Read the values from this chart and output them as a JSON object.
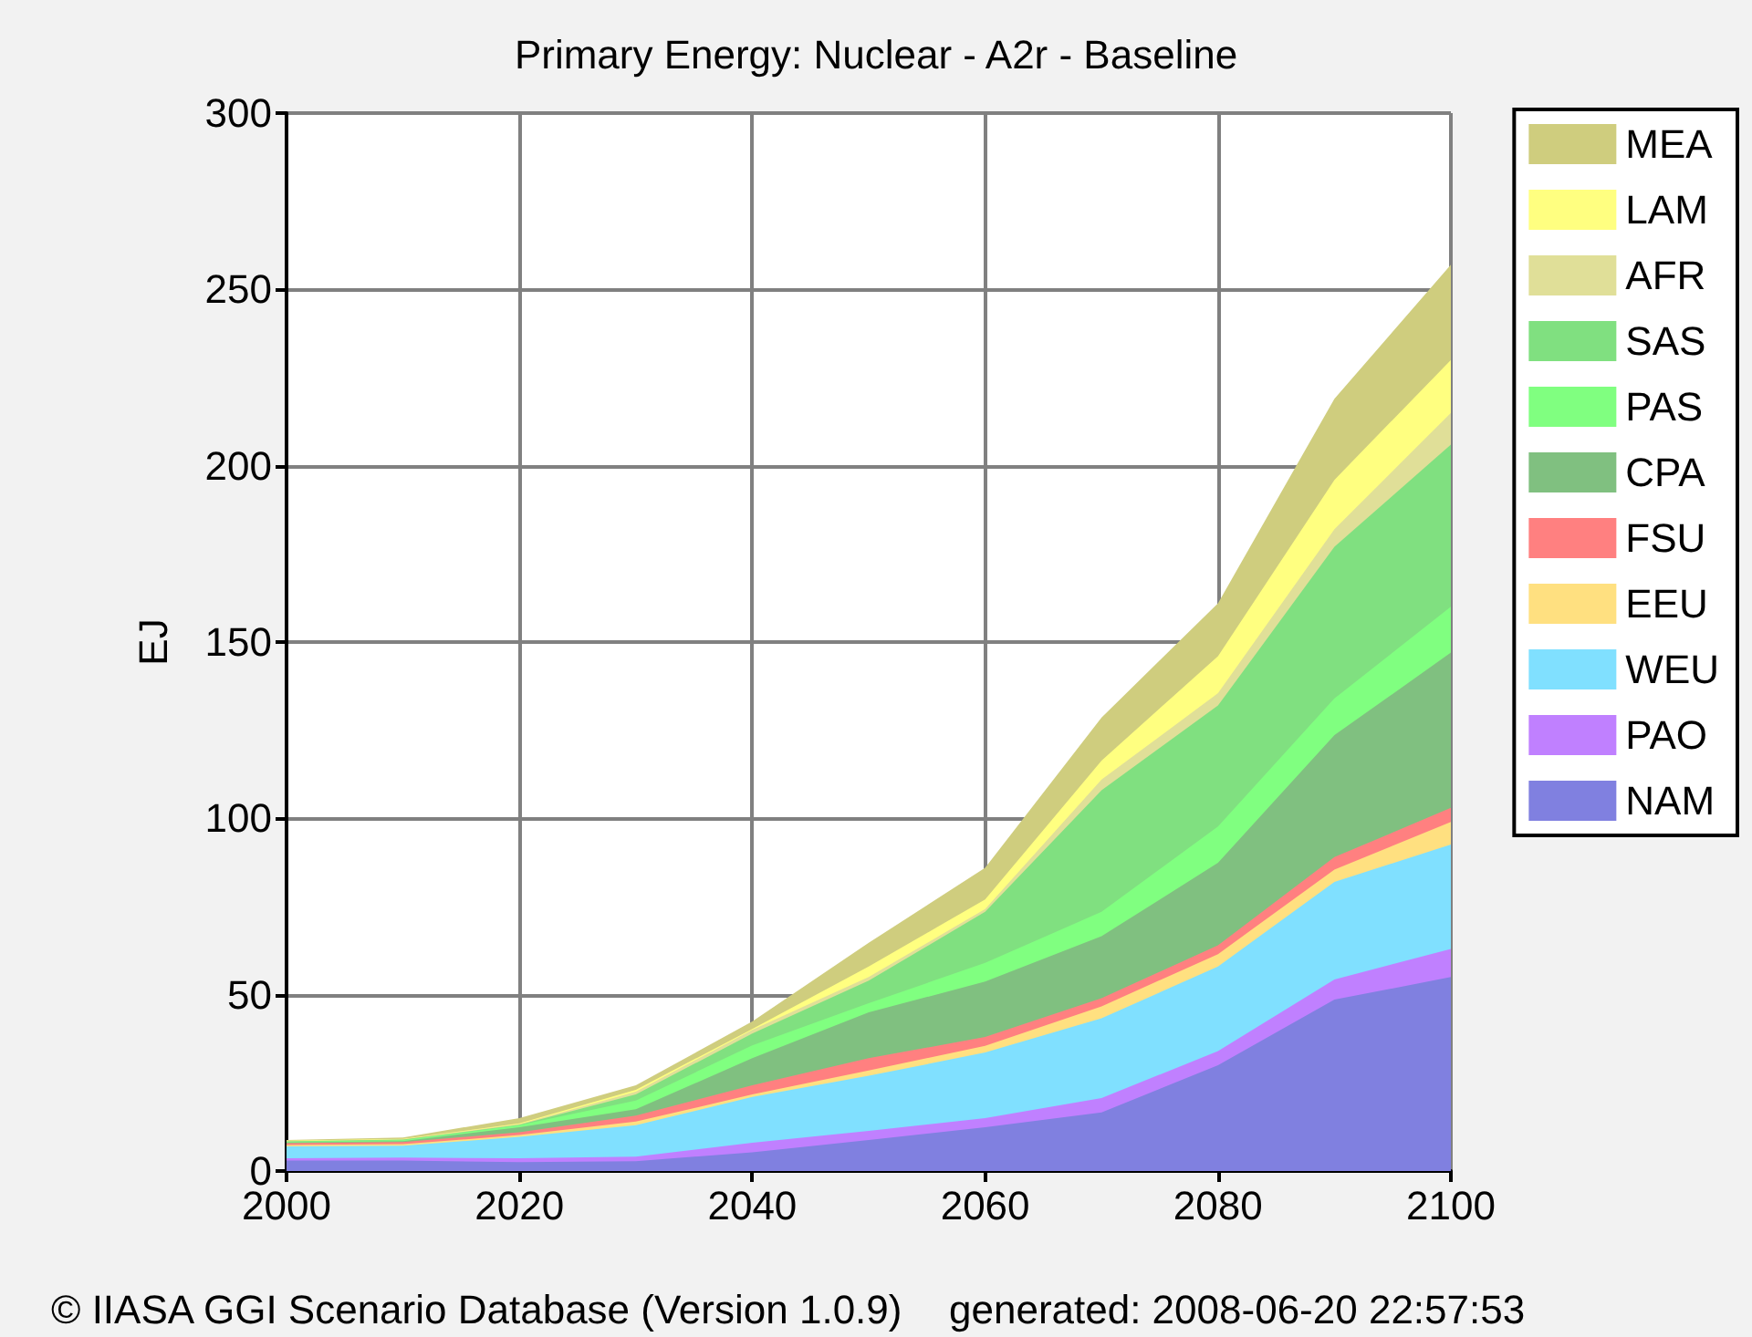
{
  "chart_data": {
    "type": "area",
    "stacked": true,
    "title": "Primary Energy: Nuclear - A2r - Baseline",
    "ylabel": "EJ",
    "x": [
      2000,
      2010,
      2020,
      2030,
      2040,
      2050,
      2060,
      2070,
      2080,
      2090,
      2100
    ],
    "xlim": [
      2000,
      2100
    ],
    "xticks": [
      2000,
      2020,
      2040,
      2060,
      2080,
      2100
    ],
    "ylim": [
      0,
      300
    ],
    "yticks": [
      0,
      50,
      100,
      150,
      200,
      250,
      300
    ],
    "grid": true,
    "legend": "right",
    "annotations": [
      "© IIASA GGI Scenario Database (Version 1.0.9)",
      "generated: 2008-06-20 22:57:53"
    ],
    "series": [
      {
        "name": "NAM",
        "color": "#8080e0",
        "values": [
          3,
          3,
          2.5,
          2.8,
          5.3,
          8.8,
          12.4,
          16.6,
          30,
          48.6,
          55
        ]
      },
      {
        "name": "PAO",
        "color": "#c080ff",
        "values": [
          0.6,
          0.8,
          1.1,
          1.3,
          2.7,
          2.6,
          2.6,
          4.1,
          4,
          5.7,
          8
        ]
      },
      {
        "name": "WEU",
        "color": "#80e0ff",
        "values": [
          3.4,
          3.4,
          6.1,
          8.9,
          13,
          15.6,
          18.6,
          22.6,
          24,
          27.7,
          29.6
        ]
      },
      {
        "name": "EEU",
        "color": "#ffe080",
        "values": [
          0.4,
          0.4,
          0.5,
          1,
          0.7,
          1.5,
          1.9,
          3.4,
          3.5,
          3.5,
          6.4
        ]
      },
      {
        "name": "FSU",
        "color": "#ff8080",
        "values": [
          0.5,
          0.6,
          0.8,
          1.7,
          2.6,
          3.5,
          2.5,
          2.3,
          2.5,
          3.5,
          4
        ]
      },
      {
        "name": "CPA",
        "color": "#80c080",
        "values": [
          0.2,
          0.3,
          1.4,
          1.8,
          7.7,
          13,
          15.7,
          17.6,
          23.4,
          34.6,
          44
        ]
      },
      {
        "name": "PAS",
        "color": "#80ff80",
        "values": [
          0.2,
          0.2,
          0.6,
          2.5,
          3.6,
          2.6,
          5.3,
          6.9,
          10.3,
          10.4,
          13
        ]
      },
      {
        "name": "SAS",
        "color": "#80e080",
        "values": [
          0.1,
          0.2,
          0.1,
          1.7,
          3.4,
          6.4,
          14.5,
          34.5,
          34.3,
          43,
          46
        ]
      },
      {
        "name": "AFR",
        "color": "#e0df98",
        "values": [
          0.1,
          0.1,
          0.2,
          0.8,
          1,
          1,
          0.8,
          3,
          3.5,
          5,
          9
        ]
      },
      {
        "name": "LAM",
        "color": "#ffff80",
        "values": [
          0.1,
          0.1,
          0.2,
          0.5,
          0.3,
          3,
          2.7,
          5.4,
          10.5,
          14,
          15
        ]
      },
      {
        "name": "MEA",
        "color": "#cfcd7e",
        "values": [
          0.2,
          0.4,
          1.5,
          1.3,
          2.1,
          6.7,
          9,
          12.2,
          15,
          23,
          27
        ]
      }
    ]
  }
}
